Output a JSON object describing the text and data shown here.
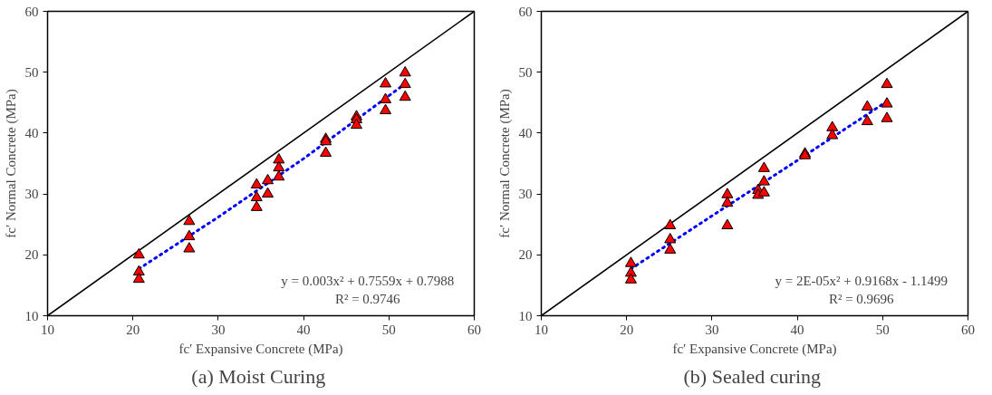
{
  "chart_data": [
    {
      "type": "scatter",
      "title": "(a)  Moist Curing",
      "xlabel": "fc′ Expansive Concrete (MPa)",
      "ylabel": "fc′ Normal Concrete (MPa)",
      "xlim": [
        10,
        60
      ],
      "ylim": [
        10,
        60
      ],
      "xticks": [
        10,
        20,
        30,
        40,
        50,
        60
      ],
      "yticks": [
        10,
        20,
        30,
        40,
        50,
        60
      ],
      "grid": false,
      "marker": "triangle",
      "annotations": [
        "y = 0.003x² + 0.7559x + 0.7988",
        "R² = 0.9746"
      ],
      "series": [
        {
          "color": "#ff0000",
          "x": [
            20.7,
            20.7,
            20.7,
            26.6,
            26.6,
            26.6,
            34.5,
            34.5,
            34.5,
            35.8,
            35.8,
            37.1,
            37.1,
            37.1,
            42.6,
            42.6,
            42.6,
            46.2,
            46.2,
            46.2,
            49.6,
            49.6,
            49.6,
            51.9,
            51.9,
            51.9
          ],
          "values": [
            20,
            17.2,
            16,
            25.5,
            23,
            21,
            31.5,
            29.4,
            27.8,
            32.2,
            30,
            35.6,
            34.3,
            32.8,
            39,
            38.6,
            36.7,
            42.7,
            42.2,
            41.3,
            48.1,
            45.5,
            43.7,
            49.9,
            48,
            45.9
          ]
        },
        {
          "type": "line",
          "color": "#0000ff",
          "line_style": "dotted",
          "marker": "none",
          "x": [
            20.7,
            30,
            40,
            51.9
          ],
          "values": [
            17.7,
            26.2,
            35.8,
            48.1
          ]
        },
        {
          "type": "line",
          "color": "#000000",
          "line_style": "solid",
          "marker": "none",
          "x": [
            10,
            60
          ],
          "values": [
            10,
            60
          ]
        }
      ]
    },
    {
      "type": "scatter",
      "title": "(b)  Sealed curing",
      "xlabel": "fc′ Expansive Concrete (MPa)",
      "ylabel": "fc′ Normal Concrete (MPa)",
      "xlim": [
        10,
        60
      ],
      "ylim": [
        10,
        60
      ],
      "xticks": [
        10,
        20,
        30,
        40,
        50,
        60
      ],
      "yticks": [
        10,
        20,
        30,
        40,
        50,
        60
      ],
      "grid": false,
      "marker": "triangle",
      "annotations": [
        "y = 2E-05x² + 0.9168x - 1.1499",
        "R² = 0.9696"
      ],
      "series": [
        {
          "color": "#ff0000",
          "x": [
            20.5,
            20.5,
            20.5,
            25.1,
            25.1,
            25.1,
            31.8,
            31.8,
            31.8,
            35.4,
            35.4,
            36.1,
            36.1,
            36.1,
            40.9,
            40.9,
            44.1,
            44.1,
            48.2,
            48.2,
            50.5,
            50.5,
            50.5
          ],
          "values": [
            18.6,
            17,
            15.9,
            24.8,
            22.5,
            20.8,
            29.9,
            28.5,
            24.8,
            30.6,
            29.8,
            34.2,
            32,
            30.2,
            36.6,
            36.3,
            40.9,
            39.6,
            44.3,
            41.9,
            48,
            44.8,
            42.4
          ]
        },
        {
          "type": "line",
          "color": "#0000ff",
          "line_style": "dotted",
          "marker": "none",
          "x": [
            20.5,
            30,
            40,
            50.5
          ],
          "values": [
            17.7,
            26.4,
            35.5,
            45.2
          ]
        },
        {
          "type": "line",
          "color": "#000000",
          "line_style": "solid",
          "marker": "none",
          "x": [
            10,
            60
          ],
          "values": [
            10,
            60
          ]
        }
      ]
    }
  ]
}
